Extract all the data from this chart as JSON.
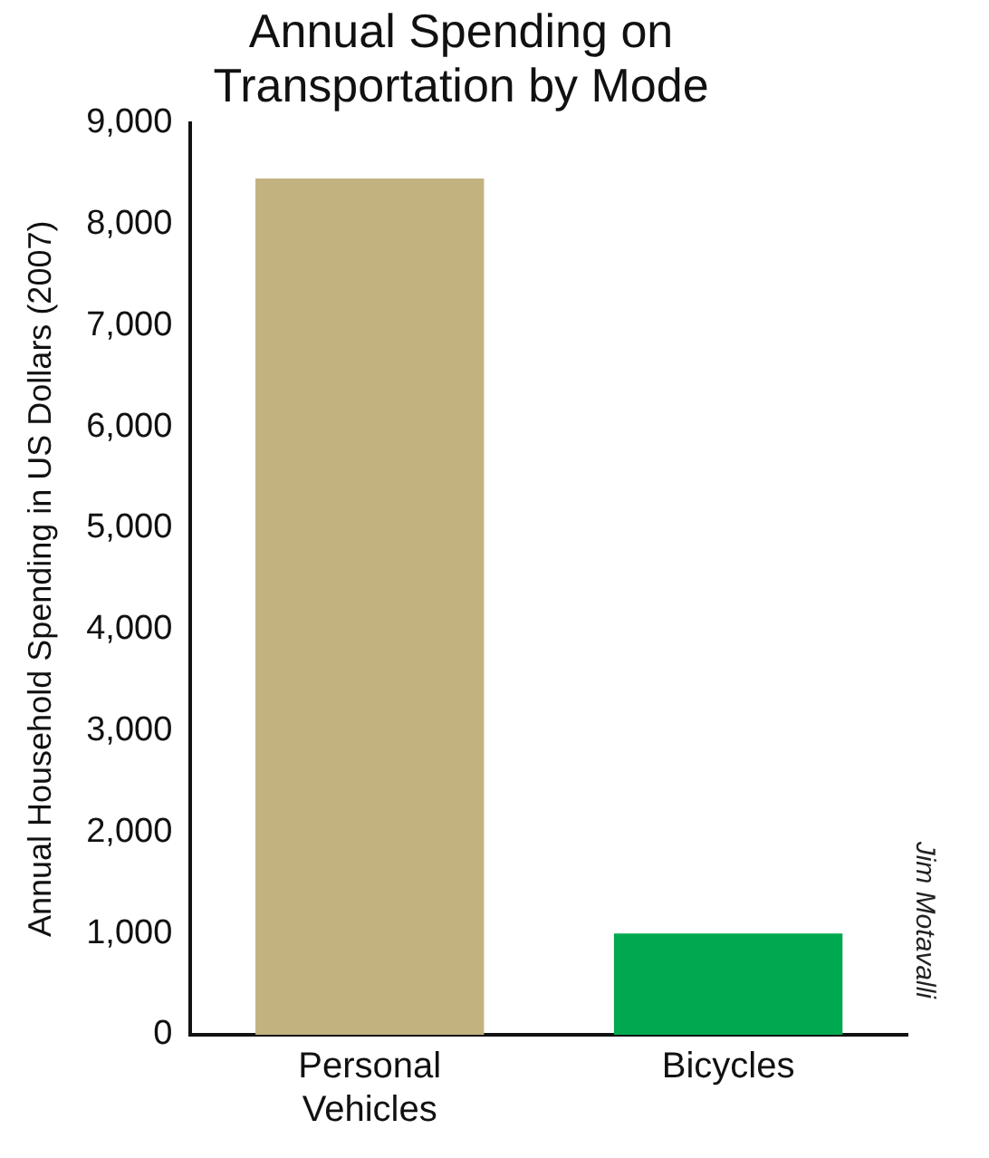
{
  "chart_data": {
    "type": "bar",
    "title": "Annual Spending on Transportation by Mode",
    "ylabel": "Annual Household Spending in US Dollars (2007)",
    "categories": [
      "Personal Vehicles",
      "Bicycles"
    ],
    "values": [
      8450,
      1000
    ],
    "colors": [
      "#c2b280",
      "#00a84f"
    ],
    "ylim": [
      0,
      9000
    ],
    "yticks": [
      0,
      {
        "value": 1000,
        "label": "1,000"
      },
      {
        "value": 2000,
        "label": "2,000"
      },
      {
        "value": 3000,
        "label": "3,000"
      },
      {
        "value": 4000,
        "label": "4,000"
      },
      {
        "value": 5000,
        "label": "5,000"
      },
      {
        "value": 6000,
        "label": "6,000"
      },
      {
        "value": 7000,
        "label": "7,000"
      },
      {
        "value": 8000,
        "label": "8,000"
      },
      {
        "value": 9000,
        "label": "9,000"
      }
    ],
    "grid": false,
    "annotations": [
      "Jim Motavalli"
    ]
  }
}
